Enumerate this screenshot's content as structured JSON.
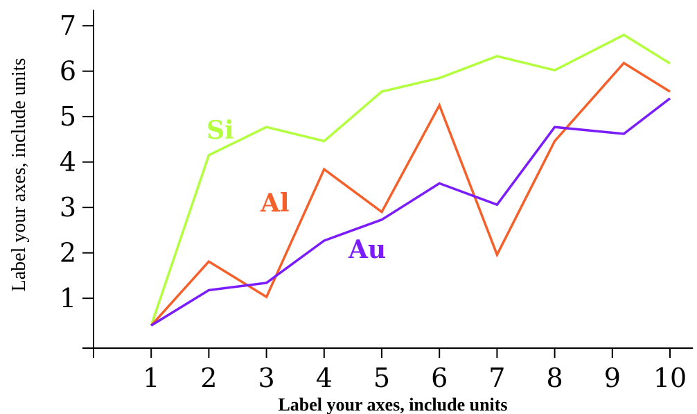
{
  "chart_data": {
    "type": "line",
    "xlabel": "Label your axes, include units",
    "ylabel": "Label your axes, include units",
    "xlim": [
      0,
      10.1
    ],
    "ylim": [
      -0.1,
      7.3
    ],
    "x_ticks": [
      1,
      2,
      3,
      4,
      5,
      6,
      7,
      8,
      9,
      10
    ],
    "y_ticks": [
      1,
      2,
      3,
      4,
      5,
      6,
      7
    ],
    "grid": false,
    "legend": "none",
    "series": [
      {
        "name": "Si",
        "color": "#b3ff3f",
        "points": [
          [
            1,
            0.4
          ],
          [
            2,
            4.15
          ],
          [
            3,
            4.77
          ],
          [
            4,
            4.46
          ],
          [
            5,
            5.55
          ],
          [
            6,
            5.85
          ],
          [
            7,
            6.33
          ],
          [
            8,
            6.02
          ],
          [
            9.2,
            6.8
          ],
          [
            10,
            6.17
          ]
        ]
      },
      {
        "name": "Al",
        "color": "#f5602a",
        "points": [
          [
            1,
            0.4
          ],
          [
            2,
            1.81
          ],
          [
            3,
            1.03
          ],
          [
            4,
            3.84
          ],
          [
            5,
            2.9
          ],
          [
            6,
            5.25
          ],
          [
            7,
            1.96
          ],
          [
            8,
            4.46
          ],
          [
            9.2,
            6.18
          ],
          [
            10,
            5.55
          ]
        ]
      },
      {
        "name": "Au",
        "color": "#7a1cfb",
        "points": [
          [
            1,
            0.4
          ],
          [
            2,
            1.18
          ],
          [
            3,
            1.34
          ],
          [
            4,
            2.27
          ],
          [
            5,
            2.73
          ],
          [
            6,
            3.53
          ],
          [
            7,
            3.06
          ],
          [
            8,
            4.77
          ],
          [
            9.2,
            4.62
          ],
          [
            10,
            5.4
          ]
        ]
      }
    ]
  }
}
